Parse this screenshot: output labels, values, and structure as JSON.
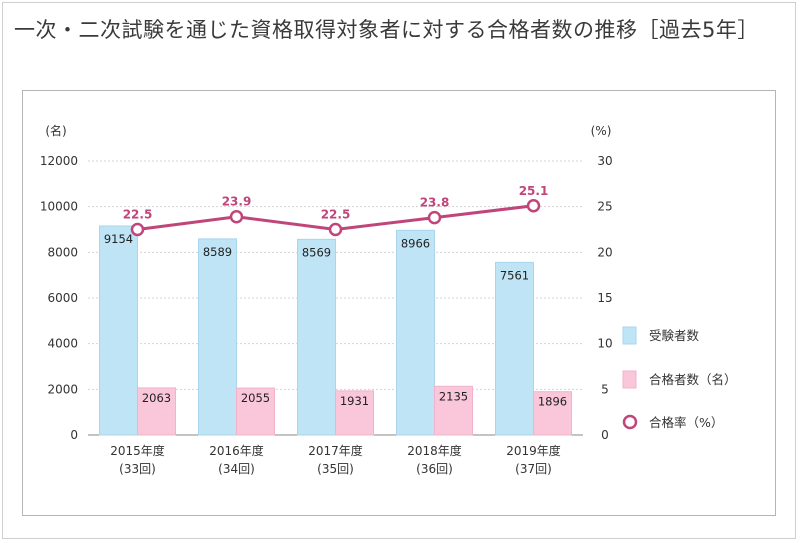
{
  "title": "一次・二次試験を通じた資格取得対象者に対する合格者数の推移［過去5年］",
  "colors": {
    "examinees": "#bfe4f5",
    "examinees_stroke": "#a9d6ec",
    "passers": "#f9c7d9",
    "passers_stroke": "#f0b3c9",
    "rate": "#c0457a",
    "frame": "#b5b5b5"
  },
  "chart_data": {
    "type": "bar",
    "categories": [
      "2015年度",
      "2016年度",
      "2017年度",
      "2018年度",
      "2019年度"
    ],
    "sub_categories": [
      "(33回)",
      "(34回)",
      "(35回)",
      "(36回)",
      "(37回)"
    ],
    "series": [
      {
        "name": "受験者数",
        "type": "bar",
        "axis": "left",
        "values": [
          9154,
          8589,
          8569,
          8966,
          7561
        ]
      },
      {
        "name": "合格者数（名）",
        "type": "bar",
        "axis": "left",
        "values": [
          2063,
          2055,
          1931,
          2135,
          1896
        ]
      },
      {
        "name": "合格率（%）",
        "type": "line",
        "axis": "right",
        "values": [
          22.5,
          23.9,
          22.5,
          23.8,
          25.1
        ]
      }
    ],
    "y_left": {
      "unit": "(名)",
      "range": [
        0,
        12000
      ],
      "ticks": [
        "0",
        "2000",
        "4000",
        "6000",
        "8000",
        "10000",
        "12000"
      ]
    },
    "y_right": {
      "unit": "(%)",
      "range": [
        0,
        30
      ],
      "ticks": [
        "0",
        "5",
        "10",
        "15",
        "20",
        "25",
        "30"
      ]
    },
    "grid": true,
    "legend_position": "right"
  }
}
